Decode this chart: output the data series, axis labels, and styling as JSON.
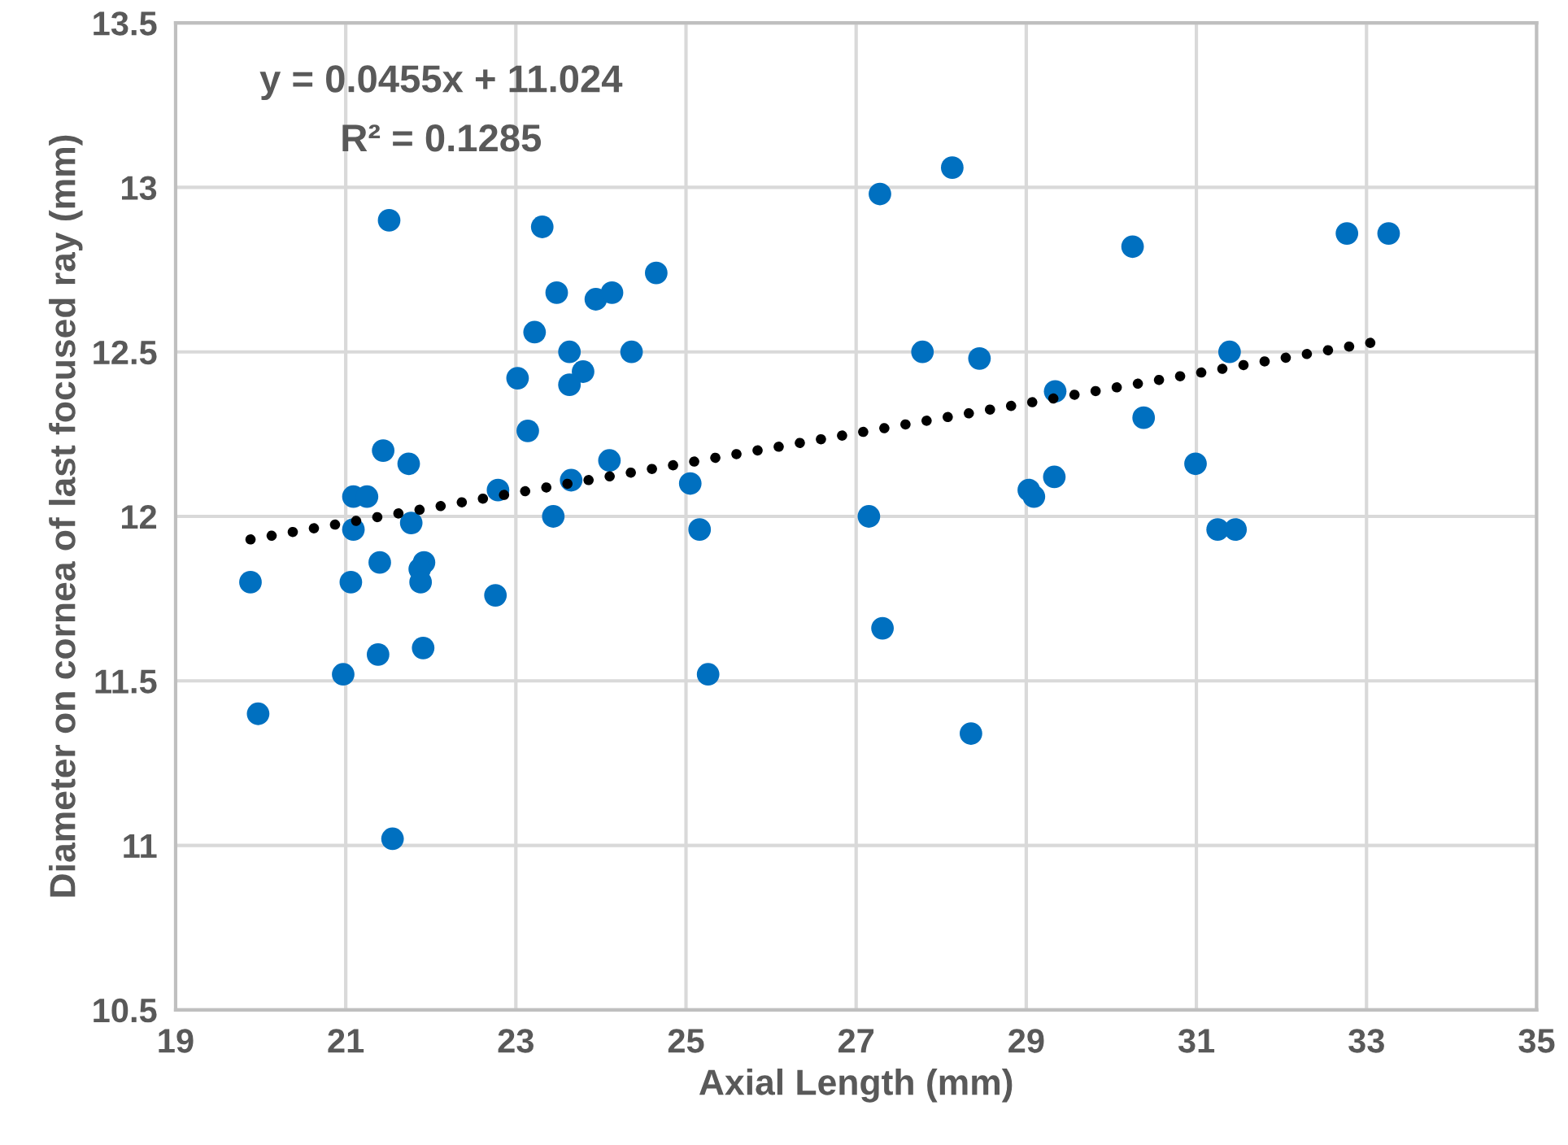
{
  "chart_data": {
    "type": "scatter",
    "xlabel": "Axial Length (mm)",
    "ylabel": "Diameter on cornea of last focused ray (mm)",
    "annotations": [
      "y = 0.0455x + 11.024",
      "R² = 0.1285"
    ],
    "xlim": [
      19,
      35
    ],
    "xticks": [
      19,
      21,
      23,
      25,
      27,
      29,
      31,
      33,
      35
    ],
    "ylim": [
      10.5,
      13.5
    ],
    "yticks": [
      10.5,
      11,
      11.5,
      12,
      12.5,
      13,
      13.5
    ],
    "grid": true,
    "legend": false,
    "marker": "circle",
    "series": [
      {
        "color": "#0070c0",
        "x": [
          21.51,
          23.02,
          23.14,
          21.44,
          21.74,
          22.79,
          21.09,
          21.25,
          21.09,
          21.77,
          19.88,
          21.06,
          21.4,
          21.92,
          21.87,
          21.88,
          22.76,
          21.38,
          21.91,
          20.97,
          19.97,
          21.55,
          23.31,
          23.48,
          23.94,
          24.13,
          24.65,
          23.22,
          23.63,
          24.36,
          23.79,
          23.63,
          24.1,
          23.65,
          23.44,
          25.05,
          25.16,
          25.26,
          28.13,
          27.28,
          27.78,
          28.45,
          29.34,
          27.15,
          29.03,
          29.09,
          29.33,
          27.31,
          28.35,
          30.25,
          32.77,
          33.26,
          31.39,
          30.38,
          30.99,
          31.25,
          31.46
        ],
        "values": [
          12.9,
          12.42,
          12.26,
          12.2,
          12.16,
          12.08,
          12.06,
          12.06,
          11.96,
          11.98,
          11.8,
          11.8,
          11.86,
          11.86,
          11.84,
          11.8,
          11.76,
          11.58,
          11.6,
          11.52,
          11.4,
          11.02,
          12.88,
          12.68,
          12.66,
          12.68,
          12.74,
          12.56,
          12.5,
          12.5,
          12.44,
          12.4,
          12.17,
          12.11,
          12.0,
          12.1,
          11.96,
          11.52,
          13.06,
          12.98,
          12.5,
          12.48,
          12.38,
          12.0,
          12.08,
          12.06,
          12.12,
          11.66,
          11.34,
          12.82,
          12.86,
          12.86,
          12.5,
          12.3,
          12.16,
          11.96,
          11.96
        ]
      },
      {
        "type": "line",
        "color": "#000000",
        "line_style": "dotted",
        "marker": "none",
        "x": [
          19.88,
          33.1
        ],
        "values": [
          11.93,
          12.53
        ]
      }
    ]
  }
}
